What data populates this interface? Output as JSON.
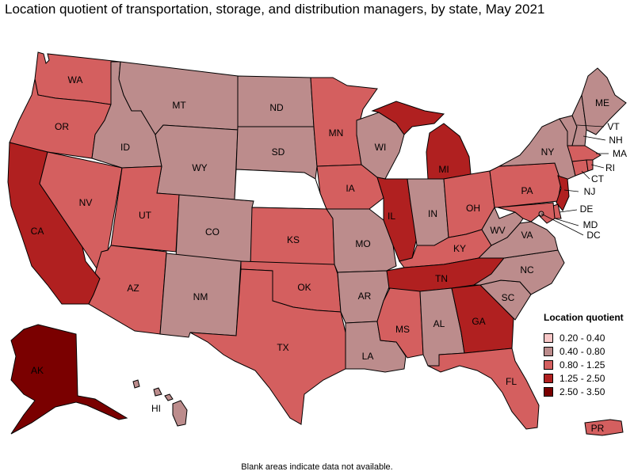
{
  "title": "Location quotient of transportation, storage, and distribution managers, by state, May 2021",
  "note": "Blank areas indicate data not available.",
  "legend": {
    "title": "Location quotient",
    "items": [
      {
        "label": "0.20 - 0.40",
        "color": "#f8c7c7"
      },
      {
        "label": "0.40 - 0.80",
        "color": "#bc8c8c"
      },
      {
        "label": "0.80 - 1.25",
        "color": "#d45f5f"
      },
      {
        "label": "1.25 - 2.50",
        "color": "#b02020"
      },
      {
        "label": "2.50 - 3.50",
        "color": "#7a0000"
      }
    ]
  },
  "states": {
    "WA": "0.80 - 1.25",
    "OR": "0.80 - 1.25",
    "CA": "1.25 - 2.50",
    "NV": "0.80 - 1.25",
    "ID": "0.40 - 0.80",
    "MT": "0.40 - 0.80",
    "WY": "0.40 - 0.80",
    "UT": "0.80 - 1.25",
    "AZ": "0.80 - 1.25",
    "CO": "0.40 - 0.80",
    "NM": "0.40 - 0.80",
    "ND": "0.40 - 0.80",
    "SD": "0.40 - 0.80",
    "KS": "0.80 - 1.25",
    "OK": "0.80 - 1.25",
    "TX": "0.80 - 1.25",
    "MN": "0.80 - 1.25",
    "IA": "0.80 - 1.25",
    "MO": "0.40 - 0.80",
    "AR": "0.40 - 0.80",
    "LA": "0.40 - 0.80",
    "WI": "0.40 - 0.80",
    "IL": "1.25 - 2.50",
    "MI": "1.25 - 2.50",
    "IN": "0.40 - 0.80",
    "OH": "0.80 - 1.25",
    "KY": "0.80 - 1.25",
    "TN": "1.25 - 2.50",
    "MS": "0.80 - 1.25",
    "AL": "0.40 - 0.80",
    "GA": "1.25 - 2.50",
    "FL": "0.80 - 1.25",
    "SC": "0.40 - 0.80",
    "NC": "0.40 - 0.80",
    "VA": "0.40 - 0.80",
    "WV": "0.40 - 0.80",
    "PA": "0.80 - 1.25",
    "NY": "0.40 - 0.80",
    "VT": "0.40 - 0.80",
    "NH": "0.40 - 0.80",
    "ME": "0.40 - 0.80",
    "MA": "0.80 - 1.25",
    "RI": "0.80 - 1.25",
    "CT": "0.80 - 1.25",
    "NJ": "1.25 - 2.50",
    "DE": "0.80 - 1.25",
    "MD": "0.80 - 1.25",
    "DC": "0.40 - 0.80",
    "AK": "2.50 - 3.50",
    "HI": "0.40 - 0.80",
    "PR": "0.80 - 1.25",
    "NE": "not available"
  },
  "map_labels": {
    "WA": "WA",
    "OR": "OR",
    "CA": "CA",
    "NV": "NV",
    "ID": "ID",
    "MT": "MT",
    "WY": "WY",
    "UT": "UT",
    "AZ": "AZ",
    "CO": "CO",
    "NM": "NM",
    "ND": "ND",
    "SD": "SD",
    "KS": "KS",
    "OK": "OK",
    "TX": "TX",
    "MN": "MN",
    "IA": "IA",
    "MO": "MO",
    "AR": "AR",
    "LA": "LA",
    "WI": "WI",
    "IL": "IL",
    "MI": "MI",
    "IN": "IN",
    "OH": "OH",
    "KY": "KY",
    "TN": "TN",
    "MS": "MS",
    "AL": "AL",
    "GA": "GA",
    "FL": "FL",
    "SC": "SC",
    "NC": "NC",
    "VA": "VA",
    "WV": "WV",
    "PA": "PA",
    "NY": "NY",
    "VT": "VT",
    "NH": "NH",
    "ME": "ME",
    "MA": "MA",
    "RI": "RI",
    "CT": "CT",
    "NJ": "NJ",
    "DE": "DE",
    "MD": "MD",
    "DC": "DC",
    "AK": "AK",
    "HI": "HI",
    "PR": "PR"
  }
}
